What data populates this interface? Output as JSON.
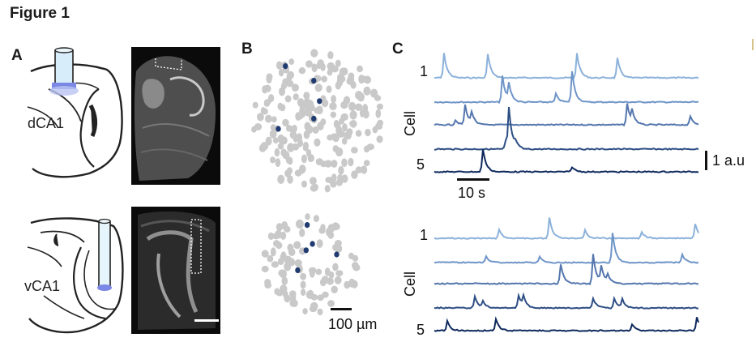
{
  "figure": {
    "title": "Figure 1"
  },
  "panels": {
    "a": {
      "label": "A",
      "regions": [
        "dCA1",
        "vCA1"
      ]
    },
    "b": {
      "label": "B",
      "scale_label": "100 µm"
    },
    "c": {
      "label": "C",
      "cell_axis_label": "Cell",
      "first_trace_label": "1",
      "last_trace_label": "5",
      "time_scale_label": "10 s",
      "amplitude_scale_label": "1 a.u"
    }
  },
  "colors": {
    "trace_1": "#8bb1da",
    "trace_2": "#6f95c8",
    "trace_3": "#5577ae",
    "trace_4": "#2d4e84",
    "trace_5": "#0f2a5e",
    "cell_gray": "#c9c9c9",
    "cell_marked": "#1f3b70"
  }
}
